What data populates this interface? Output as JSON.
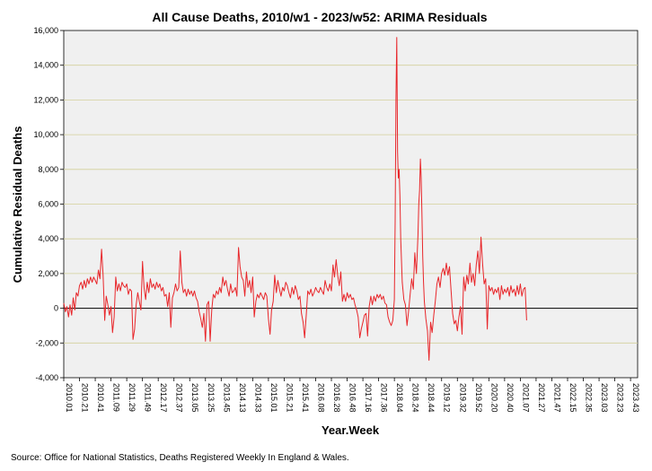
{
  "chart_data": {
    "type": "line",
    "title": "All Cause Deaths, 2010/w1 - 2023/w52: ARIMA Residuals",
    "xlabel": "Year.Week",
    "ylabel": "Cumulative Residual Deaths",
    "ylim": [
      -4000,
      16000
    ],
    "yticks": [
      -4000,
      -2000,
      0,
      2000,
      4000,
      6000,
      8000,
      10000,
      12000,
      14000,
      16000
    ],
    "ytick_labels": [
      "-4,000",
      "-2,000",
      "0",
      "2,000",
      "4,000",
      "6,000",
      "8,000",
      "10,000",
      "12,000",
      "14,000",
      "16,000"
    ],
    "xlim": [
      0,
      729
    ],
    "xtick_labels": [
      "2010.01",
      "2010.21",
      "2010.41",
      "2011.09",
      "2011.29",
      "2011.49",
      "2012.17",
      "2012.37",
      "2013.05",
      "2013.25",
      "2013.45",
      "2014.13",
      "2014.33",
      "2015.01",
      "2015.21",
      "2015.41",
      "2016.08",
      "2016.28",
      "2016.48",
      "2017.16",
      "2017.36",
      "2018.04",
      "2018.24",
      "2018.44",
      "2019.12",
      "2019.32",
      "2019.52",
      "2020.20",
      "2020.40",
      "2021.07",
      "2021.27",
      "2021.47",
      "2022.15",
      "2022.35",
      "2023.03",
      "2023.23",
      "2023.43"
    ],
    "xtick_step_weeks": 20,
    "grid": "horizontal",
    "zero_line": true,
    "series": [
      {
        "name": "ARIMA Residuals",
        "color": "#e8262a",
        "points": [
          [
            0,
            300
          ],
          [
            2,
            -200
          ],
          [
            4,
            100
          ],
          [
            6,
            -500
          ],
          [
            8,
            200
          ],
          [
            10,
            -400
          ],
          [
            12,
            600
          ],
          [
            14,
            -100
          ],
          [
            16,
            900
          ],
          [
            18,
            700
          ],
          [
            20,
            1300
          ],
          [
            22,
            1500
          ],
          [
            24,
            1100
          ],
          [
            26,
            1600
          ],
          [
            28,
            1200
          ],
          [
            30,
            1700
          ],
          [
            32,
            1400
          ],
          [
            34,
            1800
          ],
          [
            36,
            1500
          ],
          [
            38,
            1800
          ],
          [
            40,
            1600
          ],
          [
            42,
            1400
          ],
          [
            44,
            2200
          ],
          [
            46,
            1700
          ],
          [
            48,
            3400
          ],
          [
            50,
            1900
          ],
          [
            52,
            -700
          ],
          [
            54,
            700
          ],
          [
            56,
            200
          ],
          [
            58,
            -400
          ],
          [
            60,
            100
          ],
          [
            62,
            -1400
          ],
          [
            64,
            -500
          ],
          [
            66,
            1800
          ],
          [
            68,
            1000
          ],
          [
            70,
            1400
          ],
          [
            72,
            1000
          ],
          [
            74,
            1500
          ],
          [
            76,
            1300
          ],
          [
            78,
            1200
          ],
          [
            80,
            1400
          ],
          [
            82,
            800
          ],
          [
            84,
            1100
          ],
          [
            86,
            1000
          ],
          [
            88,
            -1800
          ],
          [
            90,
            -1200
          ],
          [
            92,
            200
          ],
          [
            94,
            900
          ],
          [
            96,
            400
          ],
          [
            98,
            -100
          ],
          [
            100,
            2700
          ],
          [
            102,
            1200
          ],
          [
            104,
            500
          ],
          [
            106,
            1500
          ],
          [
            108,
            900
          ],
          [
            110,
            1700
          ],
          [
            112,
            1200
          ],
          [
            114,
            1400
          ],
          [
            116,
            1100
          ],
          [
            118,
            1500
          ],
          [
            120,
            1200
          ],
          [
            122,
            1400
          ],
          [
            124,
            1000
          ],
          [
            126,
            1200
          ],
          [
            128,
            700
          ],
          [
            130,
            800
          ],
          [
            132,
            100
          ],
          [
            134,
            900
          ],
          [
            136,
            -1100
          ],
          [
            138,
            600
          ],
          [
            140,
            900
          ],
          [
            142,
            1400
          ],
          [
            144,
            1000
          ],
          [
            146,
            1200
          ],
          [
            148,
            3300
          ],
          [
            150,
            1500
          ],
          [
            152,
            900
          ],
          [
            154,
            1100
          ],
          [
            156,
            700
          ],
          [
            158,
            1100
          ],
          [
            160,
            800
          ],
          [
            162,
            1000
          ],
          [
            164,
            700
          ],
          [
            166,
            1000
          ],
          [
            168,
            600
          ],
          [
            170,
            400
          ],
          [
            172,
            -200
          ],
          [
            174,
            -600
          ],
          [
            176,
            -1100
          ],
          [
            178,
            -300
          ],
          [
            180,
            -1900
          ],
          [
            182,
            200
          ],
          [
            184,
            400
          ],
          [
            186,
            -1900
          ],
          [
            188,
            -100
          ],
          [
            190,
            800
          ],
          [
            192,
            600
          ],
          [
            194,
            1000
          ],
          [
            196,
            800
          ],
          [
            198,
            1200
          ],
          [
            200,
            900
          ],
          [
            202,
            1800
          ],
          [
            204,
            1300
          ],
          [
            206,
            1600
          ],
          [
            208,
            1100
          ],
          [
            210,
            700
          ],
          [
            212,
            1400
          ],
          [
            214,
            900
          ],
          [
            216,
            1000
          ],
          [
            218,
            1200
          ],
          [
            220,
            700
          ],
          [
            222,
            3500
          ],
          [
            224,
            2400
          ],
          [
            226,
            1800
          ],
          [
            228,
            1600
          ],
          [
            230,
            700
          ],
          [
            232,
            2100
          ],
          [
            234,
            1200
          ],
          [
            236,
            1600
          ],
          [
            238,
            900
          ],
          [
            240,
            1800
          ],
          [
            242,
            -500
          ],
          [
            244,
            400
          ],
          [
            246,
            800
          ],
          [
            248,
            600
          ],
          [
            250,
            900
          ],
          [
            252,
            700
          ],
          [
            254,
            500
          ],
          [
            256,
            900
          ],
          [
            258,
            700
          ],
          [
            260,
            -600
          ],
          [
            262,
            -1500
          ],
          [
            264,
            -100
          ],
          [
            266,
            400
          ],
          [
            268,
            1900
          ],
          [
            270,
            900
          ],
          [
            272,
            1600
          ],
          [
            274,
            1100
          ],
          [
            276,
            700
          ],
          [
            278,
            1200
          ],
          [
            280,
            1000
          ],
          [
            282,
            1500
          ],
          [
            284,
            1300
          ],
          [
            286,
            900
          ],
          [
            288,
            600
          ],
          [
            290,
            1200
          ],
          [
            292,
            800
          ],
          [
            294,
            1300
          ],
          [
            296,
            1000
          ],
          [
            298,
            500
          ],
          [
            300,
            700
          ],
          [
            302,
            -300
          ],
          [
            304,
            -800
          ],
          [
            306,
            -1700
          ],
          [
            308,
            -400
          ],
          [
            310,
            1000
          ],
          [
            312,
            800
          ],
          [
            314,
            1100
          ],
          [
            316,
            700
          ],
          [
            318,
            900
          ],
          [
            320,
            1200
          ],
          [
            322,
            1000
          ],
          [
            324,
            900
          ],
          [
            326,
            1200
          ],
          [
            328,
            1000
          ],
          [
            330,
            800
          ],
          [
            332,
            1600
          ],
          [
            334,
            1200
          ],
          [
            336,
            1000
          ],
          [
            338,
            1400
          ],
          [
            340,
            1000
          ],
          [
            342,
            2500
          ],
          [
            344,
            1800
          ],
          [
            346,
            2800
          ],
          [
            348,
            1900
          ],
          [
            350,
            1300
          ],
          [
            352,
            2100
          ],
          [
            354,
            400
          ],
          [
            356,
            800
          ],
          [
            358,
            400
          ],
          [
            360,
            900
          ],
          [
            362,
            600
          ],
          [
            364,
            800
          ],
          [
            366,
            500
          ],
          [
            368,
            600
          ],
          [
            370,
            200
          ],
          [
            372,
            -100
          ],
          [
            374,
            -500
          ],
          [
            376,
            -1700
          ],
          [
            378,
            -1200
          ],
          [
            380,
            -800
          ],
          [
            382,
            -400
          ],
          [
            384,
            -300
          ],
          [
            386,
            -1600
          ],
          [
            388,
            100
          ],
          [
            390,
            700
          ],
          [
            392,
            200
          ],
          [
            394,
            700
          ],
          [
            396,
            400
          ],
          [
            398,
            800
          ],
          [
            400,
            600
          ],
          [
            402,
            800
          ],
          [
            404,
            500
          ],
          [
            406,
            700
          ],
          [
            408,
            300
          ],
          [
            410,
            200
          ],
          [
            412,
            -500
          ],
          [
            414,
            -800
          ],
          [
            416,
            -1000
          ],
          [
            418,
            -700
          ],
          [
            420,
            500
          ],
          [
            421,
            5000
          ],
          [
            422,
            12000
          ],
          [
            423,
            15600
          ],
          [
            424,
            9000
          ],
          [
            425,
            7500
          ],
          [
            426,
            8000
          ],
          [
            427,
            6500
          ],
          [
            428,
            4000
          ],
          [
            430,
            1500
          ],
          [
            432,
            500
          ],
          [
            434,
            200
          ],
          [
            436,
            -1000
          ],
          [
            438,
            -200
          ],
          [
            440,
            800
          ],
          [
            442,
            1700
          ],
          [
            444,
            1100
          ],
          [
            446,
            3200
          ],
          [
            448,
            2000
          ],
          [
            450,
            4200
          ],
          [
            451,
            6000
          ],
          [
            452,
            6800
          ],
          [
            453,
            8600
          ],
          [
            454,
            7500
          ],
          [
            455,
            5500
          ],
          [
            456,
            3000
          ],
          [
            457,
            1500
          ],
          [
            458,
            400
          ],
          [
            460,
            -600
          ],
          [
            462,
            -1300
          ],
          [
            464,
            -3000
          ],
          [
            466,
            -800
          ],
          [
            468,
            -1400
          ],
          [
            470,
            -400
          ],
          [
            472,
            400
          ],
          [
            474,
            1400
          ],
          [
            476,
            1800
          ],
          [
            478,
            1200
          ],
          [
            480,
            2000
          ],
          [
            482,
            2300
          ],
          [
            484,
            1900
          ],
          [
            486,
            2600
          ],
          [
            488,
            1900
          ],
          [
            490,
            2400
          ],
          [
            492,
            1000
          ],
          [
            494,
            -300
          ],
          [
            496,
            -900
          ],
          [
            498,
            -700
          ],
          [
            500,
            -1300
          ],
          [
            502,
            -500
          ],
          [
            504,
            100
          ],
          [
            506,
            -1500
          ],
          [
            508,
            1800
          ],
          [
            510,
            1000
          ],
          [
            512,
            1900
          ],
          [
            514,
            1400
          ],
          [
            516,
            2600
          ],
          [
            518,
            1500
          ],
          [
            520,
            2000
          ],
          [
            522,
            1300
          ],
          [
            524,
            2500
          ],
          [
            526,
            3300
          ],
          [
            528,
            2000
          ],
          [
            530,
            4100
          ],
          [
            532,
            2600
          ],
          [
            534,
            1400
          ],
          [
            536,
            1700
          ],
          [
            538,
            -1200
          ],
          [
            540,
            1300
          ],
          [
            542,
            1000
          ],
          [
            544,
            1200
          ],
          [
            546,
            800
          ],
          [
            548,
            1100
          ],
          [
            550,
            900
          ],
          [
            552,
            1200
          ],
          [
            554,
            500
          ],
          [
            556,
            1300
          ],
          [
            558,
            800
          ],
          [
            560,
            1100
          ],
          [
            562,
            900
          ],
          [
            564,
            1200
          ],
          [
            566,
            700
          ],
          [
            568,
            1300
          ],
          [
            570,
            900
          ],
          [
            572,
            1100
          ],
          [
            574,
            700
          ],
          [
            576,
            1300
          ],
          [
            578,
            800
          ],
          [
            580,
            1400
          ],
          [
            582,
            700
          ],
          [
            584,
            1100
          ],
          [
            586,
            1200
          ],
          [
            588,
            -700
          ]
        ]
      }
    ],
    "source": "Source: Office for National Statistics, Deaths Registered Weekly In England & Wales."
  }
}
